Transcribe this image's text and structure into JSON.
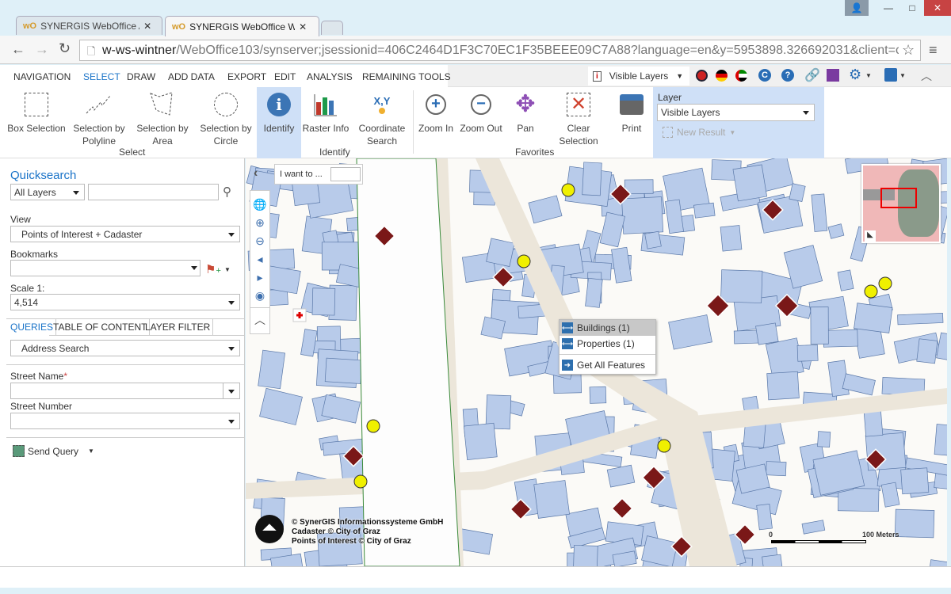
{
  "browser": {
    "tabs": [
      {
        "title": "SYNERGIS WebOffice Adm",
        "active": false
      },
      {
        "title": "SYNERGIS WebOffice Web",
        "active": true
      }
    ],
    "url_host": "w-ws-wintner",
    "url_path": "/WebOffice103/synserver;jsessionid=406C2464D1F3C70EC1F35BEEE09C7A88?language=en&y=5953898.326692031&client=core",
    "logo_text": "wO"
  },
  "menu": {
    "items": [
      "NAVIGATION",
      "SELECT",
      "DRAW",
      "ADD DATA",
      "EXPORT",
      "EDIT",
      "ANALYSIS",
      "REMAINING TOOLS"
    ],
    "active": "SELECT",
    "accent": "#1a73c8"
  },
  "toolbar_right": {
    "identify_layer": "Visible Layers",
    "icons": [
      "uk-flag-icon",
      "germany-flag-icon",
      "uae-flag-icon",
      "c-icon",
      "help-icon",
      "link-icon",
      "save-icon",
      "gear-icon",
      "user-icon",
      "collapse-icon"
    ]
  },
  "ribbon": {
    "select_tools": [
      {
        "label": "Box Selection"
      },
      {
        "label": "Selection by Polyline"
      },
      {
        "label": "Selection by Area"
      },
      {
        "label": "Selection by Circle"
      }
    ],
    "select_group": "Select",
    "identify_tools": [
      {
        "label": "Identify"
      },
      {
        "label": "Raster Info"
      },
      {
        "label": "Coordinate Search"
      }
    ],
    "identify_group": "Identify",
    "favorite_tools": [
      {
        "label": "Zoom In"
      },
      {
        "label": "Zoom Out"
      },
      {
        "label": "Pan"
      },
      {
        "label": "Clear Selection"
      },
      {
        "label": "Print"
      }
    ],
    "favorites_group": "Favorites",
    "layer_label": "Layer",
    "layer_value": "Visible Layers",
    "new_result": "New Result",
    "xy_label": "X,Y"
  },
  "panel": {
    "quicksearch_title": "Quicksearch",
    "quicksearch_layer": "All Layers",
    "quicksearch_value": "",
    "view_label": "View",
    "view_value": "Points of Interest + Cadaster",
    "bookmarks_label": "Bookmarks",
    "bookmarks_value": "",
    "scale_label": "Scale 1:",
    "scale_value": "4,514",
    "tabs": [
      "QUERIES",
      "TABLE OF CONTENT",
      "LAYER FILTER"
    ],
    "active_tab": "QUERIES",
    "query_value": "Address Search",
    "street_name_label": "Street Name",
    "required_mark": "*",
    "street_number_label": "Street Number",
    "send_query": "Send Query"
  },
  "map": {
    "i_want_to": "I want to ...",
    "context_menu": [
      {
        "label": "Buildings (1)",
        "highlighted": true
      },
      {
        "label": "Properties (1)",
        "highlighted": false
      },
      {
        "label": "Get All Features",
        "highlighted": false
      }
    ],
    "attribution": [
      "© SynerGIS Informationssysteme GmbH",
      "Cadaster © City of Graz",
      "Points of Interest © City of Graz"
    ],
    "scalebar_start": "0",
    "scalebar_end": "100 Meters",
    "colors": {
      "building": "#b8cbea",
      "road": "#ece6da",
      "poi": "#7a1818",
      "bus": "#f0f000"
    }
  }
}
